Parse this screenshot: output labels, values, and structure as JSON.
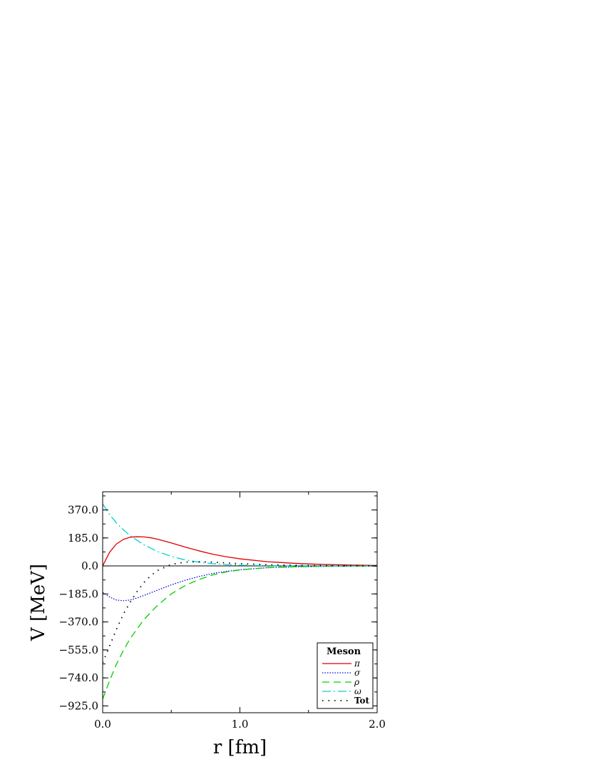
{
  "chart_data": {
    "type": "line",
    "xlabel": "r [fm]",
    "ylabel": "V [MeV]",
    "xlim": [
      0.0,
      2.0
    ],
    "ylim": [
      -970,
      490
    ],
    "xticks": [
      "0.0",
      "1.0",
      "2.0"
    ],
    "xtick_values": [
      0.0,
      1.0,
      2.0
    ],
    "yticks": [
      "370.0",
      "185.0",
      "0.0",
      "−185.0",
      "−370.0",
      "−555.0",
      "−740.0",
      "−925.0"
    ],
    "ytick_values": [
      370,
      185,
      0,
      -185,
      -370,
      -555,
      -740,
      -925
    ],
    "legend": {
      "title": "Meson",
      "placement": "bottom-right"
    },
    "series": [
      {
        "name": "π",
        "color": "#e00000",
        "dash": "solid",
        "x": [
          0,
          0.05,
          0.1,
          0.15,
          0.2,
          0.25,
          0.3,
          0.35,
          0.4,
          0.5,
          0.6,
          0.7,
          0.8,
          0.9,
          1.0,
          1.2,
          1.4,
          1.6,
          1.8,
          2.0
        ],
        "y": [
          0,
          90,
          145,
          175,
          190,
          193,
          192,
          186,
          177,
          152,
          125,
          100,
          78,
          61,
          47,
          28,
          17,
          10,
          6,
          3
        ]
      },
      {
        "name": "σ",
        "color": "#0000e0",
        "dash": "dotted",
        "x": [
          0,
          0.05,
          0.1,
          0.15,
          0.2,
          0.25,
          0.3,
          0.4,
          0.5,
          0.6,
          0.7,
          0.8,
          0.9,
          1.0,
          1.2,
          1.4,
          1.6,
          1.8,
          2.0
        ],
        "y": [
          -175,
          -205,
          -225,
          -230,
          -225,
          -212,
          -195,
          -160,
          -125,
          -95,
          -70,
          -50,
          -36,
          -25,
          -12,
          -6,
          -3,
          -1.5,
          -0.5
        ]
      },
      {
        "name": "ρ",
        "color": "#00d000",
        "dash": "dashed",
        "x": [
          0,
          0.05,
          0.1,
          0.15,
          0.2,
          0.3,
          0.4,
          0.5,
          0.6,
          0.7,
          0.8,
          0.9,
          1.0,
          1.2,
          1.4,
          1.6,
          1.8,
          2.0
        ],
        "y": [
          -880,
          -760,
          -650,
          -560,
          -480,
          -355,
          -260,
          -185,
          -130,
          -90,
          -60,
          -40,
          -26,
          -11,
          -5,
          -2,
          -1,
          -0.5
        ]
      },
      {
        "name": "ω",
        "color": "#00d0d0",
        "dash": "dashdot",
        "x": [
          0,
          0.05,
          0.1,
          0.15,
          0.2,
          0.3,
          0.4,
          0.5,
          0.6,
          0.7,
          0.8,
          0.9,
          1.0,
          1.2,
          1.4,
          1.6,
          1.8,
          2.0
        ],
        "y": [
          410,
          340,
          285,
          240,
          200,
          140,
          95,
          63,
          40,
          25,
          15,
          9,
          5,
          2,
          1,
          0.5,
          0.2,
          0
        ]
      },
      {
        "name": "Tot",
        "color": "#000000",
        "dash": "sparse-dotted",
        "x": [
          0,
          0.05,
          0.1,
          0.15,
          0.2,
          0.25,
          0.3,
          0.35,
          0.4,
          0.5,
          0.6,
          0.7,
          0.8,
          0.9,
          1.0,
          1.2,
          1.4,
          1.6,
          1.8,
          2.0
        ],
        "y": [
          -640,
          -530,
          -420,
          -320,
          -240,
          -170,
          -110,
          -65,
          -30,
          10,
          25,
          28,
          25,
          20,
          15,
          8,
          4,
          2,
          1,
          0.5
        ]
      }
    ]
  }
}
